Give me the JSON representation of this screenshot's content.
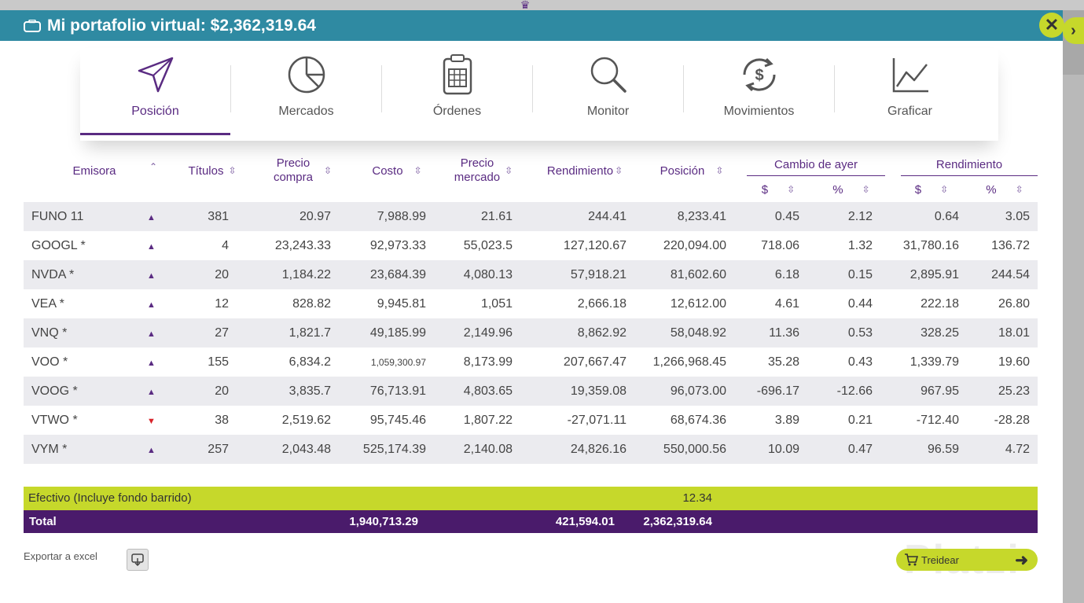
{
  "header": {
    "title": "Mi portafolio virtual: $2,362,319.64"
  },
  "tabs": [
    {
      "label": "Posición",
      "icon": "send-arrow-icon",
      "active": true
    },
    {
      "label": "Mercados",
      "icon": "pie-chart-icon"
    },
    {
      "label": "Órdenes",
      "icon": "clipboard-icon"
    },
    {
      "label": "Monitor",
      "icon": "magnifier-icon"
    },
    {
      "label": "Movimientos",
      "icon": "money-cycle-icon"
    },
    {
      "label": "Graficar",
      "icon": "line-chart-icon"
    }
  ],
  "columns": {
    "emisora": "Emisora",
    "titulos": "Títulos",
    "precio_compra_1": "Precio",
    "precio_compra_2": "compra",
    "costo": "Costo",
    "precio_mercado_1": "Precio",
    "precio_mercado_2": "mercado",
    "rendimiento": "Rendimiento",
    "posicion": "Posición",
    "cambio_ayer": "Cambio de ayer",
    "rendimiento_group": "Rendimiento",
    "dollar": "$",
    "percent": "%"
  },
  "rows": [
    {
      "emisora": "FUNO 11",
      "trend": "up",
      "titulos": "381",
      "precio_compra": "20.97",
      "costo": "7,988.99",
      "precio_mercado": "21.61",
      "rendimiento": "244.41",
      "posicion": "8,233.41",
      "cambio_usd": "0.45",
      "cambio_pct": "2.12",
      "rend_usd": "0.64",
      "rend_pct": "3.05"
    },
    {
      "emisora": "GOOGL *",
      "trend": "up",
      "titulos": "4",
      "precio_compra": "23,243.33",
      "costo": "92,973.33",
      "precio_mercado": "55,023.5",
      "rendimiento": "127,120.67",
      "posicion": "220,094.00",
      "cambio_usd": "718.06",
      "cambio_pct": "1.32",
      "rend_usd": "31,780.16",
      "rend_pct": "136.72"
    },
    {
      "emisora": "NVDA *",
      "trend": "up",
      "titulos": "20",
      "precio_compra": "1,184.22",
      "costo": "23,684.39",
      "precio_mercado": "4,080.13",
      "rendimiento": "57,918.21",
      "posicion": "81,602.60",
      "cambio_usd": "6.18",
      "cambio_pct": "0.15",
      "rend_usd": "2,895.91",
      "rend_pct": "244.54"
    },
    {
      "emisora": "VEA *",
      "trend": "up",
      "titulos": "12",
      "precio_compra": "828.82",
      "costo": "9,945.81",
      "precio_mercado": "1,051",
      "rendimiento": "2,666.18",
      "posicion": "12,612.00",
      "cambio_usd": "4.61",
      "cambio_pct": "0.44",
      "rend_usd": "222.18",
      "rend_pct": "26.80"
    },
    {
      "emisora": "VNQ *",
      "trend": "up",
      "titulos": "27",
      "precio_compra": "1,821.7",
      "costo": "49,185.99",
      "precio_mercado": "2,149.96",
      "rendimiento": "8,862.92",
      "posicion": "58,048.92",
      "cambio_usd": "11.36",
      "cambio_pct": "0.53",
      "rend_usd": "328.25",
      "rend_pct": "18.01"
    },
    {
      "emisora": "VOO *",
      "trend": "up",
      "titulos": "155",
      "precio_compra": "6,834.2",
      "costo": "1,059,300.97",
      "precio_mercado": "8,173.99",
      "rendimiento": "207,667.47",
      "posicion": "1,266,968.45",
      "cambio_usd": "35.28",
      "cambio_pct": "0.43",
      "rend_usd": "1,339.79",
      "rend_pct": "19.60"
    },
    {
      "emisora": "VOOG *",
      "trend": "up",
      "titulos": "20",
      "precio_compra": "3,835.7",
      "costo": "76,713.91",
      "precio_mercado": "4,803.65",
      "rendimiento": "19,359.08",
      "posicion": "96,073.00",
      "cambio_usd": "-696.17",
      "cambio_pct": "-12.66",
      "rend_usd": "967.95",
      "rend_pct": "25.23"
    },
    {
      "emisora": "VTWO *",
      "trend": "down",
      "titulos": "38",
      "precio_compra": "2,519.62",
      "costo": "95,745.46",
      "precio_mercado": "1,807.22",
      "rendimiento": "-27,071.11",
      "posicion": "68,674.36",
      "cambio_usd": "3.89",
      "cambio_pct": "0.21",
      "rend_usd": "-712.40",
      "rend_pct": "-28.28"
    },
    {
      "emisora": "VYM *",
      "trend": "up",
      "titulos": "257",
      "precio_compra": "2,043.48",
      "costo": "525,174.39",
      "precio_mercado": "2,140.08",
      "rendimiento": "24,826.16",
      "posicion": "550,000.56",
      "cambio_usd": "10.09",
      "cambio_pct": "0.47",
      "rend_usd": "96.59",
      "rend_pct": "4.72"
    }
  ],
  "cash": {
    "label": "Efectivo (Incluye fondo barrido)",
    "value": "12.34"
  },
  "total": {
    "label": "Total",
    "costo": "1,940,713.29",
    "rendimiento": "421,594.01",
    "posicion": "2,362,319.64"
  },
  "footer": {
    "export_label": "Exportar a excel",
    "trade_label": "Treidear",
    "watermark": "Platzi"
  },
  "colors": {
    "header": "#2f8aa2",
    "accent": "#5a2b82",
    "lime": "#c6d82b",
    "total_bg": "#4a1b6b",
    "up": "#5a2b82",
    "down": "#d8232a"
  }
}
